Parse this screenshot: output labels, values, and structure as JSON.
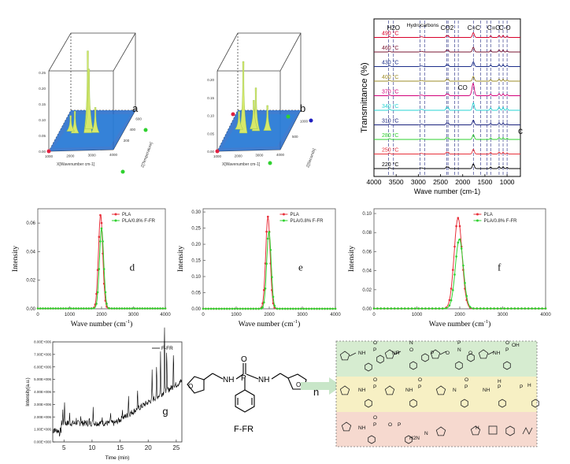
{
  "chart_data": [
    {
      "id": "a",
      "type": "surface3d",
      "panel_label": "a",
      "xlabel": "X[Wavenumber cm-1]",
      "zlabel": "Z[Temperature]",
      "x_ticks": [
        "1000",
        "2000",
        "3000",
        "4000"
      ],
      "z_ticks": [
        "200",
        "400",
        "600"
      ],
      "y_ticks": [
        "0.00",
        "0.05",
        "0.10",
        "0.15",
        "0.20",
        "0.25"
      ],
      "ylim": [
        0,
        0.25
      ],
      "peaks": [
        {
          "x": 2350,
          "z": 0.45,
          "y": 0.26
        },
        {
          "x": 2300,
          "z": 0.55,
          "y": 0.19
        },
        {
          "x": 2700,
          "z": 0.45,
          "y": 0.08
        },
        {
          "x": 1750,
          "z": 0.45,
          "y": 0.07
        },
        {
          "x": 1500,
          "z": 0.5,
          "y": 0.05
        }
      ]
    },
    {
      "id": "b",
      "type": "surface3d",
      "panel_label": "b",
      "xlabel": "X[Wavenumber cm-1]",
      "zlabel": "Z[Seconds]",
      "x_ticks": [
        "1000",
        "2000",
        "3000",
        "4000"
      ],
      "z_ticks": [
        "500",
        "1000"
      ],
      "y_ticks": [
        "0.00",
        "0.05",
        "0.10",
        "0.15",
        "0.20"
      ],
      "ylim": [
        0,
        0.22
      ],
      "peaks": [
        {
          "x": 1800,
          "z": 0.45,
          "y": 0.2
        },
        {
          "x": 2350,
          "z": 0.5,
          "y": 0.12
        },
        {
          "x": 2200,
          "z": 0.55,
          "y": 0.08
        },
        {
          "x": 2900,
          "z": 0.5,
          "y": 0.07
        },
        {
          "x": 1500,
          "z": 0.55,
          "y": 0.05
        }
      ]
    },
    {
      "id": "c",
      "type": "line",
      "panel_label": "c",
      "xlabel": "Wave number (cm-1)",
      "ylabel": "Transmittance (%)",
      "xlim": [
        4000,
        700
      ],
      "x_ticks": [
        4000,
        3500,
        3000,
        2500,
        2000,
        1500,
        1000
      ],
      "series": [
        {
          "name": "220 °C",
          "color": "#000000"
        },
        {
          "name": "250 °C",
          "color": "#e8303a"
        },
        {
          "name": "280 °C",
          "color": "#2fd12f"
        },
        {
          "name": "310 °C",
          "color": "#1a237e"
        },
        {
          "name": "340 °C",
          "color": "#27d3d3"
        },
        {
          "name": "370 °C",
          "color": "#d1007a"
        },
        {
          "name": "400 °C",
          "color": "#9e8d2a"
        },
        {
          "name": "430 °C",
          "color": "#1c2f8a"
        },
        {
          "name": "460 °C",
          "color": "#7a1430"
        },
        {
          "name": "490 °C",
          "color": "#d8002a"
        }
      ],
      "annotations": [
        {
          "text": "H2O",
          "x": 3560
        },
        {
          "text": "Hydrocarbons",
          "x": 2900
        },
        {
          "text": "CO2",
          "x": 2350
        },
        {
          "text": "C=C",
          "x": 1750
        },
        {
          "text": "C=O",
          "x": 1300
        },
        {
          "text": "C-O",
          "x": 1050
        },
        {
          "text": "CO",
          "x": 2000
        }
      ],
      "dashed_lines_x": [
        3670,
        3560,
        2960,
        2860,
        2360,
        2330,
        2180,
        2100,
        1760,
        1600,
        1450,
        1370,
        1180,
        1090,
        1000
      ]
    },
    {
      "id": "d",
      "type": "line",
      "panel_label": "d",
      "xlabel": "Wave number (cm",
      "xlabel_sup": "-1",
      "xlabel_end": ")",
      "ylabel": "Intensity",
      "xlim": [
        0,
        4000
      ],
      "ylim": [
        0,
        0.07
      ],
      "x_ticks": [
        0,
        1000,
        2000,
        3000,
        4000
      ],
      "y_ticks": [
        0.0,
        0.02,
        0.04,
        0.06
      ],
      "y_tick_labels": [
        "0.00",
        "0.02",
        "0.04",
        "0.06"
      ],
      "series": [
        {
          "name": "PLA",
          "color": "#e8303a",
          "center": 1970,
          "width": 95,
          "peak": 0.066
        },
        {
          "name": "PLA/0.8% F-FR",
          "color": "#2fd12f",
          "center": 2000,
          "width": 95,
          "peak": 0.056
        }
      ]
    },
    {
      "id": "e",
      "type": "line",
      "panel_label": "e",
      "xlabel": "Wave number (cm",
      "xlabel_sup": "-1",
      "xlabel_end": ")",
      "ylabel": "Intensity",
      "xlim": [
        0,
        4000
      ],
      "ylim": [
        0,
        0.31
      ],
      "x_ticks": [
        0,
        1000,
        2000,
        3000,
        4000
      ],
      "y_ticks": [
        0.0,
        0.05,
        0.1,
        0.15,
        0.2,
        0.25,
        0.3
      ],
      "y_tick_labels": [
        "0.00",
        "0.05",
        "0.10",
        "0.15",
        "0.20",
        "0.25",
        "0.30"
      ],
      "series": [
        {
          "name": "PLA",
          "color": "#e8303a",
          "center": 1960,
          "width": 95,
          "peak": 0.285
        },
        {
          "name": "PLA/0.8% F-FR",
          "color": "#2fd12f",
          "center": 1990,
          "width": 95,
          "peak": 0.24
        }
      ]
    },
    {
      "id": "f",
      "type": "line",
      "panel_label": "f",
      "xlabel": "Wave number (cm",
      "xlabel_sup": "-1",
      "xlabel_end": ")",
      "ylabel": "Intensity",
      "xlim": [
        0,
        4000
      ],
      "ylim": [
        0,
        0.105
      ],
      "x_ticks": [
        0,
        1000,
        2000,
        3000,
        4000
      ],
      "y_ticks": [
        0.0,
        0.02,
        0.04,
        0.06,
        0.08,
        0.1
      ],
      "y_tick_labels": [
        "0.00",
        "0.02",
        "0.04",
        "0.06",
        "0.08",
        "0.10"
      ],
      "series": [
        {
          "name": "PLA",
          "color": "#e8303a",
          "center": 1960,
          "width": 130,
          "peak": 0.095
        },
        {
          "name": "PLA/0.8% F-FR",
          "color": "#2fd12f",
          "center": 1990,
          "width": 130,
          "peak": 0.073
        }
      ]
    },
    {
      "id": "g",
      "type": "line",
      "panel_label": "g",
      "xlabel": "Time (min)",
      "ylabel": "Intensity(a.u.)",
      "xlim": [
        3,
        26
      ],
      "ylim": [
        0,
        8000000.0
      ],
      "x_ticks": [
        5,
        10,
        15,
        20,
        25
      ],
      "y_ticks": [
        0,
        1000000.0,
        2000000.0,
        3000000.0,
        4000000.0,
        5000000.0,
        6000000.0,
        7000000.0,
        8000000.0
      ],
      "y_tick_labels": [
        "0.00E+000",
        "1.00E+006",
        "2.00E+006",
        "3.00E+006",
        "4.00E+006",
        "5.00E+006",
        "6.00E+006",
        "7.00E+006",
        "8.00E+006"
      ],
      "series": [
        {
          "name": "F-FR",
          "color": "#000000"
        }
      ]
    }
  ],
  "structure": {
    "compound_label": "F-FR",
    "atoms": [
      "NH",
      "P",
      "O",
      "NH"
    ],
    "panel_label": "h"
  },
  "fragments": {
    "band_colors": [
      "#d6ecd0",
      "#f7f0c4",
      "#f6d9cf"
    ],
    "texts": [
      "NH",
      "P",
      "O",
      "NH",
      "P",
      "O",
      "N",
      "P",
      "O",
      "N",
      "P",
      "O",
      "NH",
      "P",
      "O",
      "OH",
      "NH",
      "P",
      "O",
      "NH",
      "P",
      "O",
      "N",
      "P",
      "O",
      "NH",
      "P",
      "H",
      "P",
      "H",
      "NH",
      "P",
      "O",
      "O",
      "P",
      "H2N",
      "N",
      "H"
    ]
  }
}
